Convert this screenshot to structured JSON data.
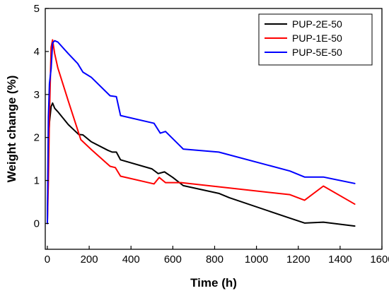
{
  "chart_data": {
    "type": "line",
    "title": "",
    "xlabel": "Time (h)",
    "ylabel": "Weight change (%)",
    "xlim": [
      -10,
      1600
    ],
    "ylim": [
      -0.6,
      5
    ],
    "x_ticks": [
      0,
      200,
      400,
      600,
      800,
      1000,
      1200,
      1400,
      1600
    ],
    "y_ticks": [
      0,
      1,
      2,
      3,
      4,
      5
    ],
    "grid": false,
    "legend_position": "top-right",
    "series": [
      {
        "name": "PUP-2E-50",
        "color": "#000000",
        "points": [
          [
            0,
            0
          ],
          [
            5,
            1.85
          ],
          [
            10,
            2.35
          ],
          [
            18,
            2.72
          ],
          [
            25,
            2.8
          ],
          [
            35,
            2.68
          ],
          [
            50,
            2.6
          ],
          [
            100,
            2.3
          ],
          [
            150,
            2.07
          ],
          [
            170,
            2.06
          ],
          [
            210,
            1.9
          ],
          [
            290,
            1.7
          ],
          [
            310,
            1.66
          ],
          [
            330,
            1.66
          ],
          [
            350,
            1.48
          ],
          [
            500,
            1.27
          ],
          [
            530,
            1.16
          ],
          [
            560,
            1.2
          ],
          [
            600,
            1.07
          ],
          [
            650,
            0.88
          ],
          [
            820,
            0.7
          ],
          [
            870,
            0.6
          ],
          [
            1150,
            0.14
          ],
          [
            1230,
            0.01
          ],
          [
            1320,
            0.03
          ],
          [
            1470,
            -0.06
          ]
        ]
      },
      {
        "name": "PUP-1E-50",
        "color": "#ff0000",
        "points": [
          [
            0,
            0
          ],
          [
            5,
            1.02
          ],
          [
            10,
            2.5
          ],
          [
            18,
            4.1
          ],
          [
            25,
            4.27
          ],
          [
            35,
            3.95
          ],
          [
            50,
            3.62
          ],
          [
            100,
            2.85
          ],
          [
            160,
            1.95
          ],
          [
            210,
            1.72
          ],
          [
            300,
            1.33
          ],
          [
            325,
            1.3
          ],
          [
            350,
            1.1
          ],
          [
            510,
            0.92
          ],
          [
            535,
            1.07
          ],
          [
            565,
            0.95
          ],
          [
            640,
            0.95
          ],
          [
            1160,
            0.67
          ],
          [
            1230,
            0.54
          ],
          [
            1320,
            0.87
          ],
          [
            1470,
            0.45
          ]
        ]
      },
      {
        "name": "PUP-5E-50",
        "color": "#0000ff",
        "points": [
          [
            0,
            0
          ],
          [
            5,
            2.48
          ],
          [
            10,
            3.25
          ],
          [
            18,
            3.6
          ],
          [
            25,
            4.2
          ],
          [
            35,
            4.25
          ],
          [
            50,
            4.22
          ],
          [
            100,
            3.95
          ],
          [
            145,
            3.72
          ],
          [
            170,
            3.52
          ],
          [
            210,
            3.4
          ],
          [
            300,
            2.97
          ],
          [
            330,
            2.95
          ],
          [
            350,
            2.51
          ],
          [
            510,
            2.33
          ],
          [
            540,
            2.1
          ],
          [
            565,
            2.14
          ],
          [
            650,
            1.73
          ],
          [
            820,
            1.66
          ],
          [
            1160,
            1.22
          ],
          [
            1230,
            1.08
          ],
          [
            1320,
            1.08
          ],
          [
            1470,
            0.93
          ]
        ]
      }
    ]
  }
}
